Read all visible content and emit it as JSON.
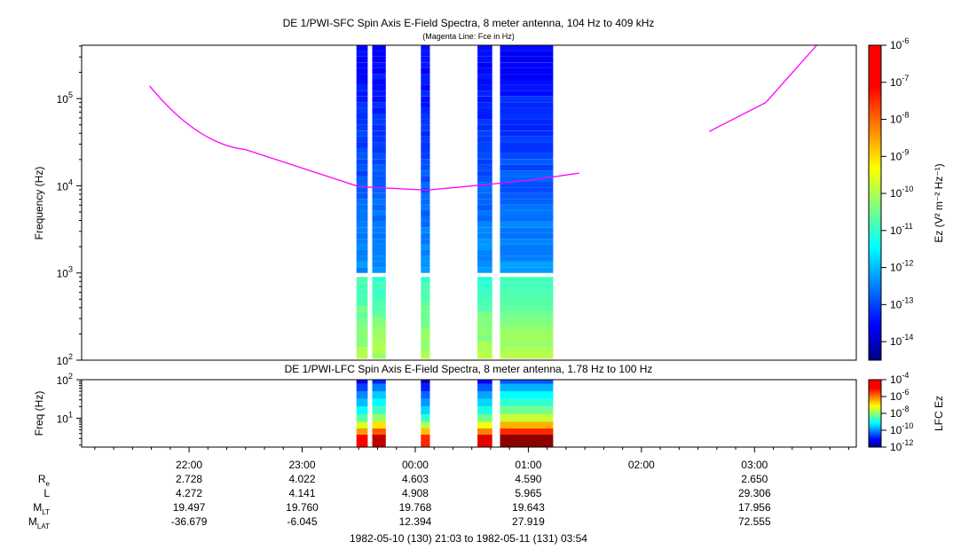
{
  "colors": {
    "fce_line": "#ff00ff",
    "frame": "#000000",
    "background": "#ffffff"
  },
  "chart_data": [
    {
      "type": "heatmap",
      "title": "DE 1/PWI-SFC  Spin Axis E-Field Spectra, 8 meter antenna, 104 Hz to 409 kHz",
      "subtitle": "(Magenta Line: Fce in Hz)",
      "ylabel": "Frequency (Hz)",
      "y_scale": "log",
      "ylim": [
        100,
        409000
      ],
      "y_ticks": [
        {
          "value": 100,
          "base": "10",
          "exp": "2"
        },
        {
          "value": 1000,
          "base": "10",
          "exp": "3"
        },
        {
          "value": 10000,
          "base": "10",
          "exp": "4"
        },
        {
          "value": 100000,
          "base": "10",
          "exp": "5"
        }
      ],
      "x_range_hours": [
        21.05,
        27.9
      ],
      "colorbar": {
        "label": "Ez (V² m⁻² Hz⁻¹)",
        "range_log": [
          -14.5,
          -6
        ],
        "ticks": [
          {
            "base": "10",
            "exp": "-6"
          },
          {
            "base": "10",
            "exp": "-7"
          },
          {
            "base": "10",
            "exp": "-8"
          },
          {
            "base": "10",
            "exp": "-9"
          },
          {
            "base": "10",
            "exp": "-10"
          },
          {
            "base": "10",
            "exp": "-11"
          },
          {
            "base": "10",
            "exp": "-12"
          },
          {
            "base": "10",
            "exp": "-13"
          },
          {
            "base": "10",
            "exp": "-14"
          }
        ]
      },
      "data_intervals_hours": [
        [
          23.48,
          23.58
        ],
        [
          23.62,
          23.74
        ],
        [
          24.05,
          24.13
        ],
        [
          24.55,
          24.68
        ],
        [
          24.75,
          25.22
        ]
      ],
      "spectral_bands": [
        {
          "f_range_hz": [
            1000,
            409000
          ],
          "log_ez_range": [
            -13.5,
            -12.2
          ]
        },
        {
          "f_range_hz": [
            104,
            900
          ],
          "log_ez_range": [
            -10.9,
            -9.9
          ]
        }
      ],
      "fce_curve": [
        {
          "segment": 1,
          "points": [
            [
              21.65,
              140000
            ],
            [
              22.5,
              26000
            ],
            [
              23.5,
              9800
            ],
            [
              24.1,
              8900
            ],
            [
              25.0,
              11500
            ],
            [
              25.45,
              14000
            ]
          ]
        },
        {
          "segment": 2,
          "points": [
            [
              26.6,
              42000
            ],
            [
              27.1,
              90000
            ],
            [
              27.55,
              409000
            ]
          ]
        }
      ]
    },
    {
      "type": "heatmap",
      "title": "DE 1/PWI-LFC  Spin Axis E-Field Spectra, 8 meter antenna, 1.78 Hz to 100 Hz",
      "ylabel": "Freq (Hz)",
      "y_scale": "log",
      "ylim": [
        1.78,
        100
      ],
      "y_ticks": [
        {
          "value": 10,
          "base": "10",
          "exp": "1"
        },
        {
          "value": 100,
          "base": "10",
          "exp": "2"
        }
      ],
      "colorbar": {
        "label": "LFC Ez",
        "range_log": [
          -12,
          -4
        ],
        "ticks": [
          {
            "base": "10",
            "exp": "-4"
          },
          {
            "base": "10",
            "exp": "-6"
          },
          {
            "base": "10",
            "exp": "-8"
          },
          {
            "base": "10",
            "exp": "-10"
          },
          {
            "base": "10",
            "exp": "-12"
          }
        ]
      },
      "data_intervals_hours": [
        [
          23.48,
          23.58
        ],
        [
          23.62,
          23.74
        ],
        [
          24.05,
          24.13
        ],
        [
          24.55,
          24.68
        ],
        [
          24.75,
          25.22
        ]
      ],
      "channel_log_ez": [
        {
          "f_hz": 3.1,
          "log_ez": -5.0
        },
        {
          "f_hz": 4.5,
          "log_ez": -6.2
        },
        {
          "f_hz": 6.5,
          "log_ez": -7.3
        },
        {
          "f_hz": 10,
          "log_ez": -8.3
        },
        {
          "f_hz": 16,
          "log_ez": -9.0
        },
        {
          "f_hz": 25,
          "log_ez": -9.5
        },
        {
          "f_hz": 40,
          "log_ez": -9.9
        },
        {
          "f_hz": 63,
          "log_ez": -10.5
        },
        {
          "f_hz": 95,
          "log_ez": -11.2
        }
      ],
      "interval_offsets": [
        0.0,
        0.5,
        -0.3,
        0.2,
        0.9
      ]
    }
  ],
  "x_axis": {
    "range_hours": [
      21.05,
      27.9
    ],
    "tick_labels": [
      {
        "hour": 22,
        "label": "22:00"
      },
      {
        "hour": 23,
        "label": "23:00"
      },
      {
        "hour": 24,
        "label": "00:00"
      },
      {
        "hour": 25,
        "label": "01:00"
      },
      {
        "hour": 26,
        "label": "02:00"
      },
      {
        "hour": 27,
        "label": "03:00"
      }
    ]
  },
  "ephemeris": {
    "rows": [
      {
        "name": "R",
        "sub": "e",
        "values": [
          "2.728",
          "4.022",
          "4.603",
          "4.590",
          "",
          "2.650"
        ]
      },
      {
        "name": "L",
        "sub": "",
        "values": [
          "4.272",
          "4.141",
          "4.908",
          "5.965",
          "",
          "29.306"
        ]
      },
      {
        "name": "M",
        "sub": "LT",
        "values": [
          "19.497",
          "19.760",
          "19.768",
          "19.643",
          "",
          "17.956"
        ]
      },
      {
        "name": "M",
        "sub": "LAT",
        "values": [
          "-36.679",
          "-6.045",
          "12.394",
          "27.919",
          "",
          "72.555"
        ]
      }
    ]
  },
  "time_range_label": "1982-05-10 (130) 21:03 to 1982-05-11 (131) 03:54"
}
